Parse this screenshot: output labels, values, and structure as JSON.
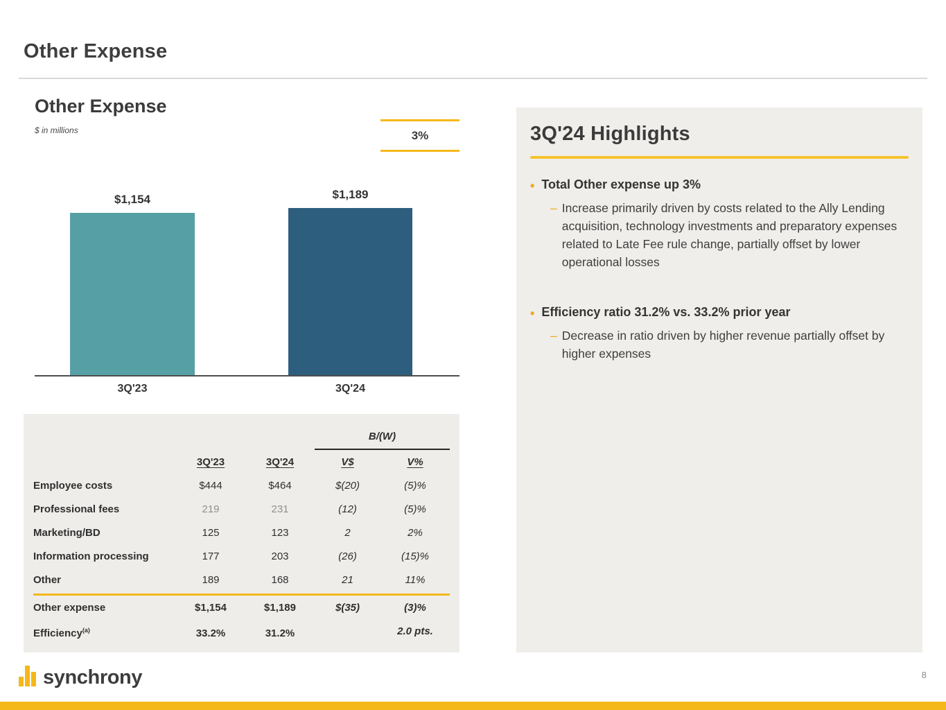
{
  "slide": {
    "title": "Other Expense"
  },
  "chart": {
    "title": "Other Expense",
    "subtitle": "$ in millions",
    "growth_label": "3%"
  },
  "chart_data": {
    "type": "bar",
    "title": "Other Expense ($ in millions)",
    "categories": [
      "3Q'23",
      "3Q'24"
    ],
    "values": [
      1154,
      1189
    ],
    "value_labels": [
      "$1,154",
      "$1,189"
    ],
    "bar_colors": [
      "#569fa5",
      "#2e5e7d"
    ],
    "annotation": "3%",
    "ylim": [
      0,
      1250
    ],
    "grid": false,
    "legend": "none"
  },
  "table": {
    "group_header": "B/(W)",
    "col_headers": [
      "3Q'23",
      "3Q'24",
      "V$",
      "V%"
    ],
    "rows": [
      {
        "label": "Employee costs",
        "c1": "$444",
        "c2": "$464",
        "c3": "$(20)",
        "c4": "(5)%"
      },
      {
        "label": "Professional fees",
        "c1": "219",
        "c2": "231",
        "c3": "(12)",
        "c4": "(5)%"
      },
      {
        "label": "Marketing/BD",
        "c1": "125",
        "c2": "123",
        "c3": "2",
        "c4": "2%"
      },
      {
        "label": "Information processing",
        "c1": "177",
        "c2": "203",
        "c3": "(26)",
        "c4": "(15)%"
      },
      {
        "label": "Other",
        "c1": "189",
        "c2": "168",
        "c3": "21",
        "c4": "11%"
      }
    ],
    "total_row": {
      "label": "Other expense",
      "c1": "$1,154",
      "c2": "$1,189",
      "c3": "$(35)",
      "c4": "(3)%"
    },
    "efficiency_row": {
      "label": "Efficiency",
      "footnote_mark": "(a)",
      "c1": "33.2%",
      "c2": "31.2%",
      "c3": "",
      "c4": "2.0 pts."
    }
  },
  "highlights": {
    "title": "3Q'24 Highlights",
    "items": [
      {
        "bullet": "Total Other expense up 3%",
        "subs": [
          "Increase primarily driven by costs related to the Ally Lending acquisition, technology investments and preparatory expenses related to Late Fee rule change, partially offset by lower operational losses"
        ]
      },
      {
        "bullet": "Efficiency ratio 31.2% vs. 33.2% prior year",
        "subs": [
          "Decrease in ratio driven by higher revenue partially offset by higher expenses"
        ]
      }
    ]
  },
  "footer": {
    "brand": "synchrony",
    "page_number": "8"
  },
  "colors": {
    "accent_gold": "#f5b81a",
    "bar_teal": "#569fa5",
    "bar_blue": "#2e5e7d",
    "panel_bg": "#efeeeb",
    "table_bg": "#eeedea",
    "text_dark": "#3a3a3a"
  }
}
